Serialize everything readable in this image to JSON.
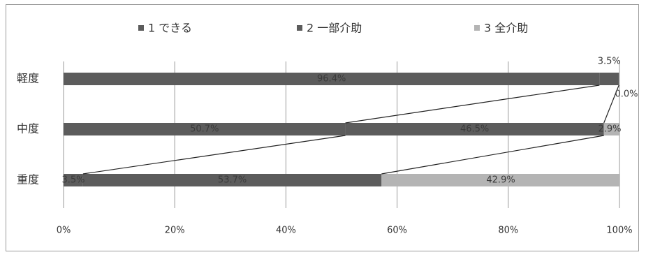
{
  "chart_data": {
    "type": "bar",
    "orientation": "horizontal",
    "stacked": true,
    "percent": true,
    "categories": [
      "軽度",
      "中度",
      "重度"
    ],
    "series": [
      {
        "name": "1 できる",
        "values": [
          96.4,
          50.7,
          3.5
        ],
        "color": "#5c5c5c"
      },
      {
        "name": "2 一部介助",
        "values": [
          3.5,
          46.5,
          53.7
        ],
        "color": "#5c5c5c"
      },
      {
        "name": "3 全介助",
        "values": [
          0.0,
          2.9,
          42.9
        ],
        "color": "#b4b4b4"
      }
    ],
    "data_labels": [
      [
        "96.4%",
        "3.5%",
        "0.0%"
      ],
      [
        "50.7%",
        "46.5%",
        "2.9%"
      ],
      [
        "3.5%",
        "53.7%",
        "42.9%"
      ]
    ],
    "x_ticks": [
      "0%",
      "20%",
      "40%",
      "60%",
      "80%",
      "100%"
    ],
    "xlim": [
      0,
      100
    ],
    "grid": true,
    "legend_position": "top",
    "series_lines": true
  }
}
